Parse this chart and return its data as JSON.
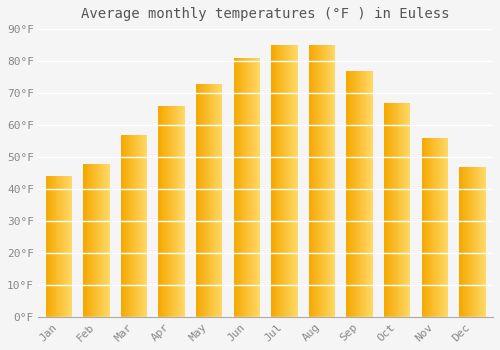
{
  "title": "Average monthly temperatures (°F ) in Euless",
  "months": [
    "Jan",
    "Feb",
    "Mar",
    "Apr",
    "May",
    "Jun",
    "Jul",
    "Aug",
    "Sep",
    "Oct",
    "Nov",
    "Dec"
  ],
  "values": [
    44,
    48,
    57,
    66,
    73,
    81,
    85,
    85,
    77,
    67,
    56,
    47
  ],
  "bar_color_left": "#F5A800",
  "bar_color_right": "#FFD966",
  "ylim": [
    0,
    90
  ],
  "yticks": [
    0,
    10,
    20,
    30,
    40,
    50,
    60,
    70,
    80,
    90
  ],
  "ytick_labels": [
    "0°F",
    "10°F",
    "20°F",
    "30°F",
    "40°F",
    "50°F",
    "60°F",
    "70°F",
    "80°F",
    "90°F"
  ],
  "background_color": "#f5f5f5",
  "plot_bg_color": "#f5f5f5",
  "grid_color": "#ffffff",
  "title_fontsize": 10,
  "tick_fontsize": 8,
  "bar_width": 0.7
}
